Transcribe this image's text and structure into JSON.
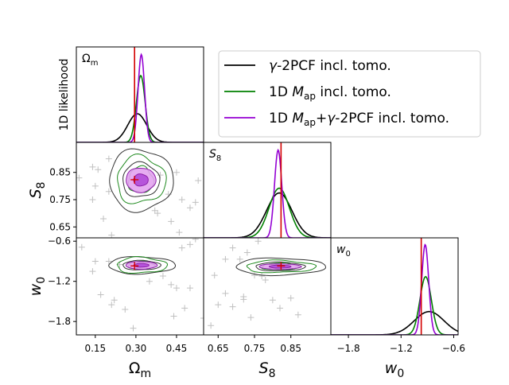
{
  "chart_data": {
    "type": "corner",
    "parameters": [
      {
        "key": "om",
        "label": "Ω",
        "sub": "m",
        "range": [
          0.08,
          0.55
        ],
        "ticks": [
          0.15,
          0.3,
          0.45
        ],
        "tick_labels": [
          "0.15",
          "0.30",
          "0.45"
        ],
        "truth": 0.295
      },
      {
        "key": "s8",
        "label": "S",
        "sub": "8",
        "range": [
          0.61,
          0.96
        ],
        "ticks": [
          0.65,
          0.75,
          0.85
        ],
        "tick_labels": [
          "0.65",
          "0.75",
          "0.85"
        ],
        "truth": 0.823
      },
      {
        "key": "w0",
        "label": "w",
        "sub": "0",
        "range": [
          -2.0,
          -0.55
        ],
        "ticks": [
          -1.8,
          -1.2,
          -0.6
        ],
        "tick_labels": [
          "−1.8",
          "−1.2",
          "−0.6"
        ],
        "truth": -0.97
      }
    ],
    "ylabel_1d": "1D likelihood",
    "legend": [
      {
        "prefix": "",
        "math": "γ",
        "mid": "-2PCF incl. tomo.",
        "color": "#000000"
      },
      {
        "prefix": "1D ",
        "math": "M",
        "sub": "ap",
        "mid": " incl. tomo.",
        "color": "#008000"
      },
      {
        "prefix": "1D ",
        "math": "M",
        "sub": "ap",
        "mid": "+",
        "math2": "γ",
        "suffix": "-2PCF incl. tomo.",
        "color": "#9400D3"
      }
    ],
    "series_1d": {
      "om": [
        {
          "name": "γ-2PCF incl. tomo.",
          "color": "#000000",
          "peak": 0.3,
          "mean": 0.305,
          "sigma": 0.035
        },
        {
          "name": "1D Map incl. tomo.",
          "color": "#008000",
          "peak": 0.7,
          "mean": 0.318,
          "sigma": 0.016
        },
        {
          "name": "1D Map+γ-2PCF incl. tomo.",
          "color": "#9400D3",
          "peak": 0.92,
          "mean": 0.32,
          "sigma": 0.012
        }
      ],
      "s8": [
        {
          "name": "γ-2PCF incl. tomo.",
          "color": "#000000",
          "peak": 0.47,
          "mean": 0.818,
          "sigma": 0.035
        },
        {
          "name": "1D Map incl. tomo.",
          "color": "#008000",
          "peak": 0.52,
          "mean": 0.818,
          "sigma": 0.028
        },
        {
          "name": "1D Map+γ-2PCF incl. tomo.",
          "color": "#9400D3",
          "peak": 0.92,
          "mean": 0.815,
          "sigma": 0.01
        }
      ],
      "w0": [
        {
          "name": "γ-2PCF incl. tomo.",
          "color": "#000000",
          "peak": 0.24,
          "mean": -0.88,
          "sigma": 0.17
        },
        {
          "name": "1D Map incl. tomo.",
          "color": "#008000",
          "peak": 0.6,
          "mean": -0.92,
          "sigma": 0.065
        },
        {
          "name": "1D Map+γ-2PCF incl. tomo.",
          "color": "#9400D3",
          "peak": 0.93,
          "mean": -0.925,
          "sigma": 0.04
        }
      ]
    },
    "contours_2d": {
      "om_s8": {
        "center": [
          0.318,
          0.822
        ],
        "black": [
          [
            0.118,
            0.113
          ],
          [
            0.068,
            0.063
          ]
        ],
        "green": [
          [
            0.09,
            0.086
          ],
          [
            0.046,
            0.048
          ]
        ],
        "purple": [
          [
            0.055,
            0.045
          ],
          [
            0.027,
            0.022
          ]
        ]
      },
      "om_w0": {
        "center": [
          0.32,
          -0.96
        ],
        "black": [
          [
            0.123,
            0.128
          ],
          [
            0.07,
            0.07
          ]
        ],
        "green": [
          [
            0.092,
            0.118
          ],
          [
            0.048,
            0.058
          ]
        ],
        "purple": [
          [
            0.058,
            0.058
          ],
          [
            0.028,
            0.028
          ]
        ]
      },
      "s8_w0": {
        "center": [
          0.82,
          -0.98
        ],
        "black": [
          [
            0.123,
            0.128
          ],
          [
            0.068,
            0.065
          ]
        ],
        "green": [
          [
            0.095,
            0.09
          ],
          [
            0.05,
            0.052
          ]
        ],
        "purple": [
          [
            0.058,
            0.042
          ],
          [
            0.03,
            0.022
          ]
        ]
      }
    },
    "samples": {
      "om_s8": [
        [
          0.2,
          0.9
        ],
        [
          0.14,
          0.87
        ],
        [
          0.16,
          0.86
        ],
        [
          0.09,
          0.83
        ],
        [
          0.15,
          0.8
        ],
        [
          0.2,
          0.78
        ],
        [
          0.14,
          0.75
        ],
        [
          0.18,
          0.68
        ],
        [
          0.21,
          0.62
        ],
        [
          0.37,
          0.71
        ],
        [
          0.38,
          0.7
        ],
        [
          0.43,
          0.67
        ],
        [
          0.42,
          0.77
        ],
        [
          0.47,
          0.75
        ],
        [
          0.52,
          0.74
        ],
        [
          0.53,
          0.82
        ],
        [
          0.46,
          0.63
        ],
        [
          0.39,
          0.84
        ],
        [
          0.45,
          0.85
        ],
        [
          0.5,
          0.72
        ]
      ],
      "om_w0": [
        [
          0.1,
          -0.69
        ],
        [
          0.15,
          -0.9
        ],
        [
          0.2,
          -0.9
        ],
        [
          0.24,
          -0.95
        ],
        [
          0.14,
          -1.05
        ],
        [
          0.17,
          -1.4
        ],
        [
          0.22,
          -1.48
        ],
        [
          0.21,
          -1.55
        ],
        [
          0.26,
          -1.62
        ],
        [
          0.29,
          -1.9
        ],
        [
          0.43,
          -1.25
        ],
        [
          0.45,
          -1.3
        ],
        [
          0.5,
          -1.3
        ],
        [
          0.48,
          -1.6
        ],
        [
          0.44,
          -1.72
        ],
        [
          0.55,
          -1.75
        ],
        [
          0.5,
          -0.65
        ],
        [
          0.52,
          -0.57
        ],
        [
          0.47,
          -0.7
        ],
        [
          0.4,
          -1.12
        ],
        [
          0.35,
          -1.2
        ]
      ],
      "s8_w0": [
        [
          0.69,
          -0.7
        ],
        [
          0.73,
          -0.77
        ],
        [
          0.76,
          -0.6
        ],
        [
          0.67,
          -0.87
        ],
        [
          0.71,
          -0.87
        ],
        [
          0.75,
          -1.11
        ],
        [
          0.77,
          -1.12
        ],
        [
          0.78,
          -1.18
        ],
        [
          0.67,
          -1.38
        ],
        [
          0.72,
          -1.43
        ],
        [
          0.69,
          -1.58
        ],
        [
          0.65,
          -1.55
        ],
        [
          0.74,
          -1.74
        ],
        [
          0.63,
          -1.86
        ],
        [
          0.8,
          -1.48
        ],
        [
          0.82,
          -1.6
        ],
        [
          0.85,
          -1.45
        ],
        [
          0.87,
          -1.7
        ],
        [
          0.64,
          -1.11
        ],
        [
          0.72,
          -1.47
        ]
      ]
    }
  }
}
